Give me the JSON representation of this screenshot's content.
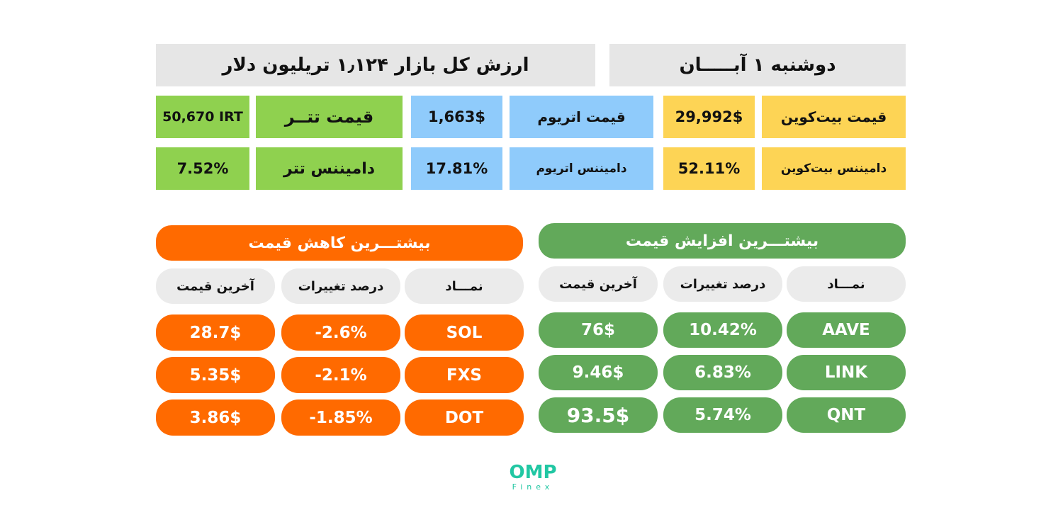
{
  "header": {
    "date": "دوشنبه ۱ آبـــــان",
    "market_cap": "ارزش کل بازار ۱٫۱۲۴ تریلیون دلار"
  },
  "stats": {
    "btc_price_label": "قیمت بیت‌کوین",
    "btc_price": "29,992$",
    "btc_dominance_label": "دامیننس بیت‌کوین",
    "btc_dominance": "52.11%",
    "eth_price_label": "قیمت اتریوم",
    "eth_price": "1,663$",
    "eth_dominance_label": "دامیننس اتریوم",
    "eth_dominance": "17.81%",
    "usdt_price_label": "قیمت تتــر",
    "usdt_price": "50,670 IRT",
    "usdt_dominance_label": "دامیننس تتر",
    "usdt_dominance": "7.52%"
  },
  "gainers": {
    "title": "بیشتـــرین افزایش قیمت",
    "col_symbol": "نمـــاد",
    "col_change": "درصد تغییرات",
    "col_price": "آخرین قیمت",
    "rows": [
      {
        "symbol": "AAVE",
        "change": "10.42%",
        "price": "76$"
      },
      {
        "symbol": "LINK",
        "change": "6.83%",
        "price": "9.46$"
      },
      {
        "symbol": "QNT",
        "change": "5.74%",
        "price": "93.5$"
      }
    ]
  },
  "losers": {
    "title": "بیشتـــرین کاهش قیمت",
    "col_symbol": "نمـــاد",
    "col_change": "درصد تغییرات",
    "col_price": "آخرین قیمت",
    "rows": [
      {
        "symbol": "SOL",
        "change": "-2.6%",
        "price": "28.7$"
      },
      {
        "symbol": "FXS",
        "change": "-2.1%",
        "price": "5.35$"
      },
      {
        "symbol": "DOT",
        "change": "-1.85%",
        "price": "3.86$"
      }
    ]
  },
  "logo": {
    "name": "OMP",
    "sub": "Finex"
  },
  "colors": {
    "yellow": "#fdd455",
    "blue": "#8fcbfb",
    "green": "#8fd14f",
    "orange": "#ff6a00",
    "dark_green": "#62a95a",
    "brand": "#21c7a3"
  }
}
